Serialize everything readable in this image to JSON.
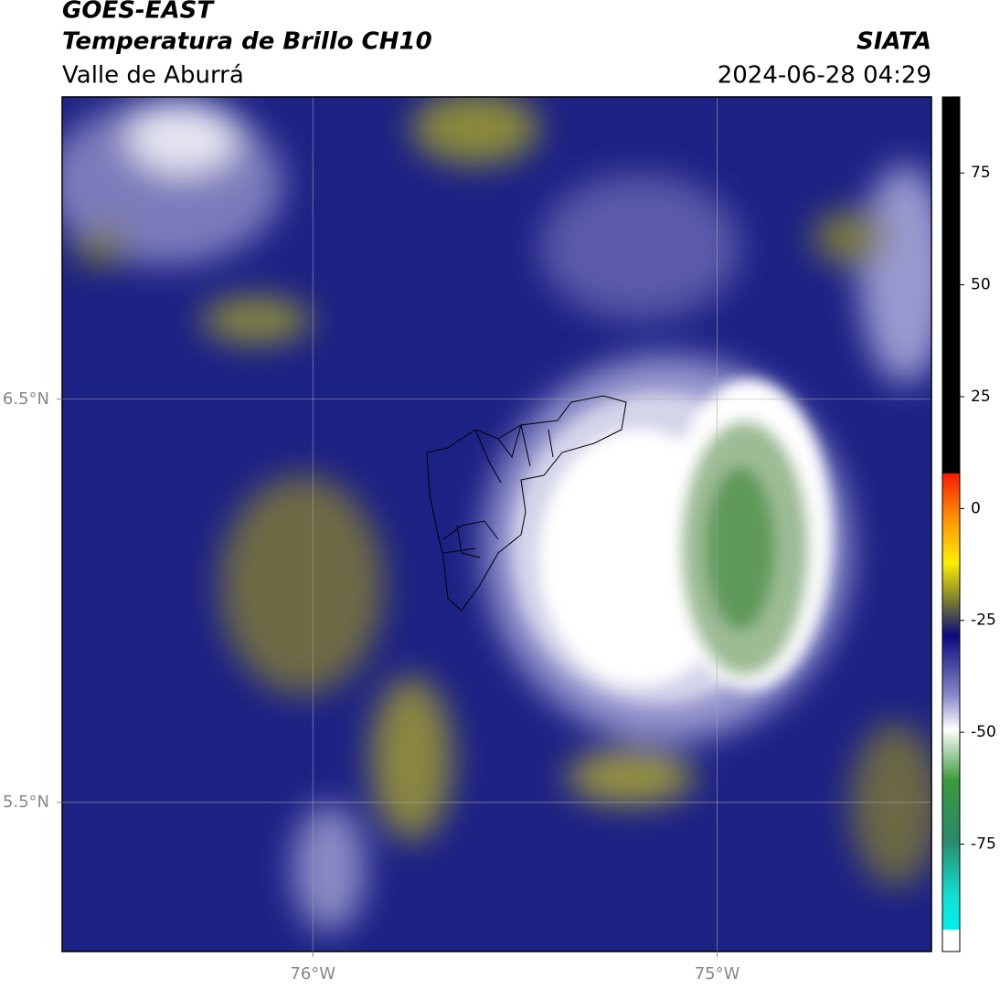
{
  "header": {
    "title": "GOES-EAST",
    "subtitle": "Temperatura de Brillo CH10",
    "source": "SIATA",
    "region": "Valle de Aburrá",
    "timestamp": "2024-06-28 04:29"
  },
  "map": {
    "xlim": [
      -76.62,
      -74.47
    ],
    "ylim": [
      5.13,
      7.25
    ],
    "xticks": [
      {
        "value": -76,
        "label": "76°W"
      },
      {
        "value": -75,
        "label": "75°W"
      }
    ],
    "yticks": [
      {
        "value": 6.5,
        "label": "6.5°N"
      },
      {
        "value": 5.5,
        "label": "5.5°N"
      }
    ]
  },
  "colorbar": {
    "range": [
      -99,
      92
    ],
    "ticks": [
      75,
      50,
      25,
      0,
      -25,
      -50,
      -75
    ]
  }
}
